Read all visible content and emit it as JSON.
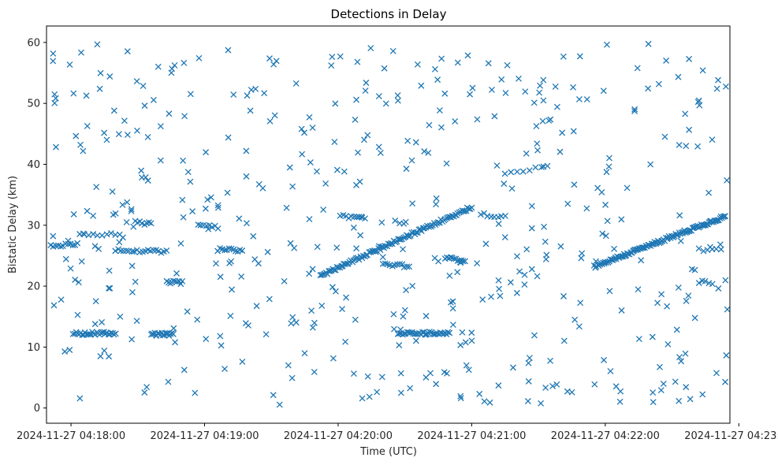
{
  "chart_data": {
    "type": "scatter",
    "title": "Detections in Delay",
    "xlabel": "Time (UTC)",
    "ylabel": "Bistatic Delay (km)",
    "xlim": [
      "2024-11-27 04:17:49",
      "2024-11-27 04:22:56"
    ],
    "ylim": [
      -2.5,
      62.7
    ],
    "grid": false,
    "marker": "x",
    "color": "#1f77b4",
    "x_ticks": [
      "2024-11-27 04:18:00",
      "2024-11-27 04:19:00",
      "2024-11-27 04:20:00",
      "2024-11-27 04:21:00",
      "2024-11-27 04:22:00",
      "2024-11-27 04:23:00"
    ],
    "y_ticks": [
      0,
      10,
      20,
      30,
      40,
      50,
      60
    ],
    "series": [
      {
        "note": "",
        "segments": [
          {
            "x_start": "2024-11-27 04:18:01",
            "x_end": "2024-11-27 04:18:20",
            "y_start": 12.2,
            "y_end": 12.3,
            "count": 30
          },
          {
            "x_start": "2024-11-27 04:18:36",
            "x_end": "2024-11-27 04:18:46",
            "y_start": 12.1,
            "y_end": 12.1,
            "count": 18
          },
          {
            "x_start": "2024-11-27 04:20:27",
            "x_end": "2024-11-27 04:20:50",
            "y_start": 12.2,
            "y_end": 12.3,
            "count": 35
          },
          {
            "x_start": "2024-11-27 04:19:52",
            "x_end": "2024-11-27 04:21:00",
            "y_start": 21.7,
            "y_end": 33.0,
            "count": 110
          },
          {
            "x_start": "2024-11-27 04:21:55",
            "x_end": "2024-11-27 04:22:54",
            "y_start": 23.2,
            "y_end": 31.5,
            "count": 120
          },
          {
            "x_start": "2024-11-27 04:17:51",
            "x_end": "2024-11-27 04:18:03",
            "y_start": 26.5,
            "y_end": 27.0,
            "count": 12
          },
          {
            "x_start": "2024-11-27 04:18:20",
            "x_end": "2024-11-27 04:18:43",
            "y_start": 26.0,
            "y_end": 25.6,
            "count": 20
          },
          {
            "x_start": "2024-11-27 04:18:43",
            "x_end": "2024-11-27 04:18:50",
            "y_start": 20.7,
            "y_end": 20.6,
            "count": 10
          },
          {
            "x_start": "2024-11-27 04:19:06",
            "x_end": "2024-11-27 04:19:17",
            "y_start": 26.0,
            "y_end": 25.9,
            "count": 12
          },
          {
            "x_start": "2024-11-27 04:20:01",
            "x_end": "2024-11-27 04:20:12",
            "y_start": 31.5,
            "y_end": 31.2,
            "count": 10
          },
          {
            "x_start": "2024-11-27 04:20:20",
            "x_end": "2024-11-27 04:20:32",
            "y_start": 23.6,
            "y_end": 23.3,
            "count": 12
          },
          {
            "x_start": "2024-11-27 04:20:48",
            "x_end": "2024-11-27 04:20:57",
            "y_start": 24.6,
            "y_end": 24.3,
            "count": 12
          },
          {
            "x_start": "2024-11-27 04:21:04",
            "x_end": "2024-11-27 04:21:15",
            "y_start": 31.8,
            "y_end": 31.3,
            "count": 8
          },
          {
            "x_start": "2024-11-27 04:21:15",
            "x_end": "2024-11-27 04:21:34",
            "y_start": 38.6,
            "y_end": 39.6,
            "count": 8
          },
          {
            "x_start": "2024-11-27 04:22:42",
            "x_end": "2024-11-27 04:22:52",
            "y_start": 26.0,
            "y_end": 26.0,
            "count": 6
          },
          {
            "x_start": "2024-11-27 04:22:42",
            "x_end": "2024-11-27 04:22:48",
            "y_start": 20.7,
            "y_end": 20.6,
            "count": 5
          },
          {
            "x_start": "2024-11-27 04:18:04",
            "x_end": "2024-11-27 04:18:22",
            "y_start": 28.3,
            "y_end": 28.6,
            "count": 10
          },
          {
            "x_start": "2024-11-27 04:18:29",
            "x_end": "2024-11-27 04:18:36",
            "y_start": 30.5,
            "y_end": 30.2,
            "count": 8
          },
          {
            "x_start": "2024-11-27 04:18:57",
            "x_end": "2024-11-27 04:19:06",
            "y_start": 30.3,
            "y_end": 29.6,
            "count": 8
          }
        ],
        "scatter_noise": {
          "x_start": "2024-11-27 04:17:51",
          "x_end": "2024-11-27 04:22:55",
          "y_min": 0.5,
          "y_max": 59.8,
          "count": 480
        }
      }
    ]
  }
}
